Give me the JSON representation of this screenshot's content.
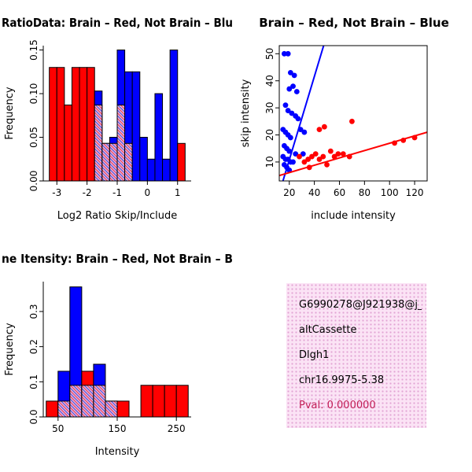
{
  "colors": {
    "red": "#FF0000",
    "blue": "#0000FF",
    "hatch_bg": "#F6C8E8",
    "hatch_red": "#E04060",
    "hatch_blue": "#5050D8",
    "info_bg": "#FBE3F5",
    "info_dot": "#E2A3D4",
    "pval": "#C21E56",
    "axis": "#000000"
  },
  "chart_data": [
    {
      "id": "log2ratio-histogram",
      "type": "bar",
      "title": "RatioData: Brain – Red, Not Brain – Blu",
      "xlabel": "Log2 Ratio Skip/Include",
      "ylabel": "Frequency",
      "xlim": [
        -3.45,
        1.45
      ],
      "ylim": [
        0,
        0.155
      ],
      "xticks": [
        -3,
        -2,
        -1,
        0,
        1
      ],
      "xtick_labels": [
        "-3",
        "-2",
        "-1",
        "0",
        "1"
      ],
      "yticks": [
        0,
        0.05,
        0.1,
        0.15
      ],
      "ytick_labels": [
        "0.00",
        "0.05",
        "0.10",
        "0.15"
      ],
      "bin_width": 0.25,
      "bin_starts": [
        -3.25,
        -3.0,
        -2.75,
        -2.5,
        -2.25,
        -2.0,
        -1.75,
        -1.5,
        -1.25,
        -1.0,
        -0.75,
        -0.5,
        -0.25,
        0.0,
        0.25,
        0.5,
        0.75,
        1.0
      ],
      "series": [
        {
          "name": "Brain (red)",
          "color": "#FF0000",
          "values": [
            0.13,
            0.13,
            0.087,
            0.13,
            0.13,
            0.13,
            0.087,
            0.043,
            0.043,
            0.087,
            0.043,
            0,
            0,
            0,
            0,
            0,
            0,
            0.043
          ]
        },
        {
          "name": "Not Brain (blue)",
          "color": "#0000FF",
          "values": [
            0,
            0,
            0,
            0,
            0,
            0,
            0.103,
            0.043,
            0.05,
            0.15,
            0.125,
            0.125,
            0.05,
            0.025,
            0.1,
            0.025,
            0.15,
            0
          ]
        }
      ]
    },
    {
      "id": "intensity-scatter",
      "type": "scatter",
      "title": "Brain – Red, Not Brain – Blue",
      "xlabel": "include intensity",
      "ylabel": "skip intensity",
      "xlim": [
        12,
        130
      ],
      "ylim": [
        3,
        53
      ],
      "xticks": [
        20,
        40,
        60,
        80,
        100,
        120
      ],
      "xtick_labels": [
        "20",
        "40",
        "60",
        "80",
        "100",
        "120"
      ],
      "yticks": [
        10,
        20,
        30,
        40,
        50
      ],
      "ytick_labels": [
        "10",
        "20",
        "30",
        "40",
        "50"
      ],
      "series": [
        {
          "name": "Not Brain (blue)",
          "color": "#0000FF",
          "points": [
            [
              16,
              50
            ],
            [
              19,
              50
            ],
            [
              21,
              43
            ],
            [
              24,
              42
            ],
            [
              23,
              38
            ],
            [
              20,
              37
            ],
            [
              26,
              36
            ],
            [
              17,
              31
            ],
            [
              19,
              29
            ],
            [
              22,
              28
            ],
            [
              25,
              27
            ],
            [
              27,
              26
            ],
            [
              15,
              22
            ],
            [
              17,
              21
            ],
            [
              19,
              20
            ],
            [
              21,
              19
            ],
            [
              29,
              22
            ],
            [
              32,
              21
            ],
            [
              16,
              16
            ],
            [
              18,
              15
            ],
            [
              20,
              14
            ],
            [
              15,
              12
            ],
            [
              17,
              11
            ],
            [
              19,
              11
            ],
            [
              21,
              10
            ],
            [
              23,
              10
            ],
            [
              16,
              9
            ],
            [
              18,
              8
            ],
            [
              20,
              7
            ],
            [
              25,
              13
            ],
            [
              31,
              13
            ]
          ],
          "line": [
            13,
            0,
            50,
            57
          ]
        },
        {
          "name": "Brain (red)",
          "color": "#FF0000",
          "points": [
            [
              28,
              12
            ],
            [
              32,
              10
            ],
            [
              35,
              11
            ],
            [
              38,
              12
            ],
            [
              41,
              13
            ],
            [
              44,
              11
            ],
            [
              47,
              12
            ],
            [
              50,
              9
            ],
            [
              53,
              14
            ],
            [
              56,
              12
            ],
            [
              59,
              13
            ],
            [
              63,
              13
            ],
            [
              68,
              12
            ],
            [
              36,
              8
            ],
            [
              44,
              22
            ],
            [
              48,
              23
            ],
            [
              70,
              25
            ],
            [
              104,
              17
            ],
            [
              111,
              18
            ],
            [
              120,
              19
            ]
          ],
          "line": [
            12,
            5,
            130,
            21
          ]
        }
      ]
    },
    {
      "id": "gene-intensity-histogram",
      "type": "bar",
      "title": "ne Itensity: Brain – Red, Not Brain – B",
      "xlabel": "Intensity",
      "ylabel": "Frequency",
      "xlim": [
        25,
        275
      ],
      "ylim": [
        0,
        0.385
      ],
      "xticks": [
        50,
        150,
        250
      ],
      "xtick_labels": [
        "50",
        "150",
        "250"
      ],
      "yticks": [
        0,
        0.1,
        0.2,
        0.3
      ],
      "ytick_labels": [
        "0.0",
        "0.1",
        "0.2",
        "0.3"
      ],
      "bin_width": 20,
      "bin_starts": [
        30,
        50,
        70,
        90,
        110,
        130,
        150,
        170,
        190,
        210,
        230,
        250
      ],
      "series": [
        {
          "name": "Brain (red)",
          "color": "#FF0000",
          "values": [
            0.045,
            0.045,
            0.09,
            0.13,
            0.09,
            0.045,
            0.045,
            0,
            0.09,
            0.09,
            0.09,
            0.09
          ]
        },
        {
          "name": "Not Brain (blue)",
          "color": "#0000FF",
          "values": [
            0,
            0.13,
            0.37,
            0.09,
            0.15,
            0.045,
            0,
            0,
            0,
            0,
            0,
            0
          ]
        }
      ]
    }
  ],
  "info_box": {
    "lines": [
      "G6990278@J921938@j_",
      "altCassette",
      "Dlgh1",
      "chr16.9975-5.38"
    ],
    "pval_label": "Pval: 0.000000"
  }
}
